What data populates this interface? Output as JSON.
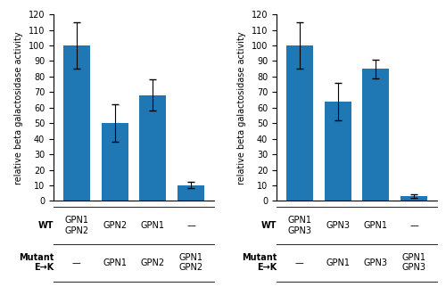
{
  "chart_data": [
    {
      "type": "bar",
      "ylabel": "relative beta galactosidase activity",
      "categories": [
        null,
        null,
        null,
        null
      ],
      "values": [
        100,
        50,
        68,
        10
      ],
      "errors": [
        15,
        12,
        10,
        2
      ],
      "ylim": [
        0,
        120
      ],
      "yticks": [
        0,
        10,
        20,
        30,
        40,
        50,
        60,
        70,
        80,
        90,
        100,
        110,
        120
      ],
      "tick_labels": "y",
      "table": {
        "row_labels": [
          "WT",
          "Mutant\nE→K"
        ],
        "rows": [
          [
            "GPN1\nGPN2",
            "GPN2",
            "GPN1",
            "—"
          ],
          [
            "—",
            "GPN1",
            "GPN2",
            "GPN1\nGPN2"
          ]
        ]
      }
    },
    {
      "type": "bar",
      "ylabel": "relative beta galactosidase activity",
      "categories": [
        null,
        null,
        null,
        null
      ],
      "values": [
        100,
        64,
        85,
        3
      ],
      "errors": [
        15,
        12,
        6,
        1
      ],
      "ylim": [
        0,
        120
      ],
      "yticks": [
        0,
        10,
        20,
        30,
        40,
        50,
        60,
        70,
        80,
        90,
        100,
        110,
        120
      ],
      "tick_labels": "y",
      "table": {
        "row_labels": [
          "WT",
          "Mutant\nE→K"
        ],
        "rows": [
          [
            "GPN1\nGPN3",
            "GPN3",
            "GPN1",
            "—"
          ],
          [
            "—",
            "GPN1",
            "GPN3",
            "GPN1\nGPN3"
          ]
        ]
      }
    }
  ]
}
